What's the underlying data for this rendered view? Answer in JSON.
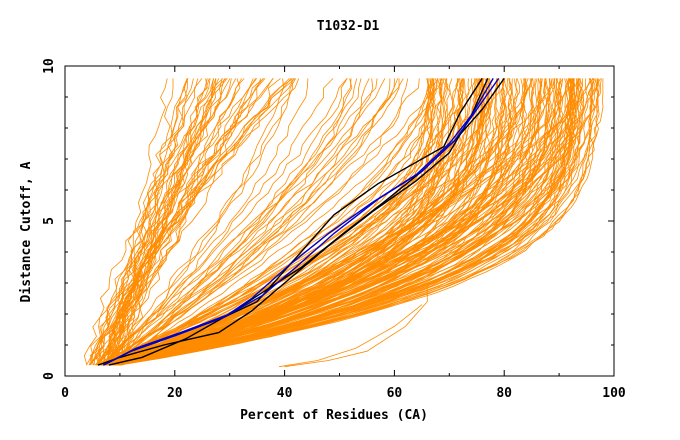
{
  "chart_data": {
    "type": "line",
    "title": "T1032-D1",
    "xlabel": "Percent of Residues (CA)",
    "ylabel": "Distance Cutoff, A",
    "xlim": [
      0,
      100
    ],
    "ylim": [
      0,
      10
    ],
    "x_ticks": [
      "0",
      "20",
      "40",
      "60",
      "80",
      "100"
    ],
    "y_ticks": [
      "0",
      "5",
      "10"
    ],
    "grid": false,
    "colors": {
      "background_models": "#ff8c00",
      "highlight_blue": "#0000cc",
      "highlight_black": "#000000"
    },
    "series": [
      {
        "name": "black-1",
        "color": "#000000",
        "x": [
          6,
          10,
          18,
          28,
          34,
          40,
          48,
          56,
          64,
          70,
          74,
          77
        ],
        "y": [
          0.35,
          0.6,
          1.0,
          1.4,
          2.1,
          3.0,
          4.2,
          5.3,
          6.3,
          7.2,
          8.4,
          9.6
        ]
      },
      {
        "name": "black-2",
        "color": "#000000",
        "x": [
          8,
          14,
          22,
          30,
          36,
          43,
          50,
          58,
          65,
          71,
          76,
          80
        ],
        "y": [
          0.35,
          0.6,
          1.2,
          2.0,
          2.7,
          3.5,
          4.5,
          5.6,
          6.6,
          7.6,
          8.6,
          9.6
        ]
      },
      {
        "name": "black-3",
        "color": "#000000",
        "x": [
          7,
          12,
          20,
          29,
          35,
          42,
          49,
          57,
          63,
          69,
          72,
          76
        ],
        "y": [
          0.35,
          0.8,
          1.3,
          1.9,
          2.4,
          3.8,
          5.2,
          6.2,
          6.8,
          7.4,
          8.5,
          9.6
        ]
      },
      {
        "name": "blue-1",
        "color": "#0000cc",
        "x": [
          7,
          12,
          20,
          29,
          34,
          41,
          48,
          56,
          64,
          70,
          74,
          78
        ],
        "y": [
          0.35,
          0.8,
          1.3,
          1.9,
          2.5,
          3.6,
          4.6,
          5.6,
          6.5,
          7.5,
          8.4,
          9.6
        ]
      },
      {
        "name": "blue-2",
        "color": "#0000cc",
        "x": [
          7,
          13,
          21,
          30,
          36,
          42,
          49,
          57,
          65,
          71,
          75,
          79
        ],
        "y": [
          0.35,
          0.9,
          1.4,
          2.0,
          2.6,
          3.5,
          4.6,
          5.7,
          6.6,
          7.6,
          8.6,
          9.6
        ]
      }
    ]
  }
}
